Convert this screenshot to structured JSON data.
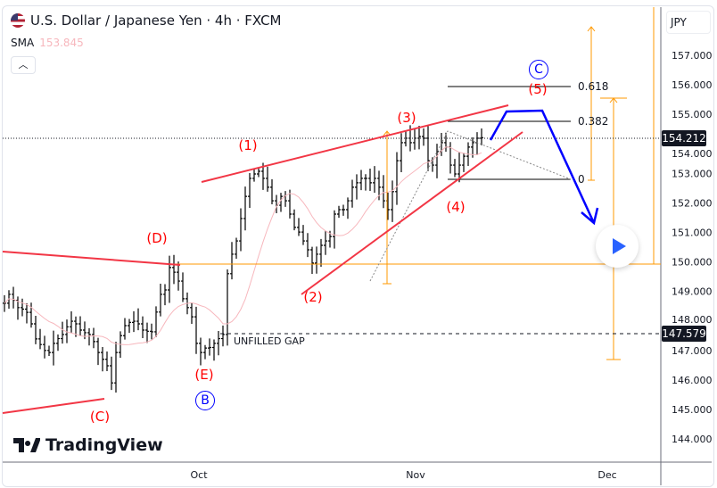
{
  "header": {
    "title": "U.S. Dollar / Japanese Yen · 4h · FXCM",
    "indicator": "SMA",
    "indicator_value": "153.845",
    "collapse_icon": "chevron-up-icon"
  },
  "currency": "JPY",
  "price_tags": {
    "last": "154.212",
    "gap": "147.579"
  },
  "annotations": {
    "waves": {
      "w1": "(1)",
      "w2": "(2)",
      "w3": "(3)",
      "w4": "(4)",
      "w5": "(5)",
      "c": "(C)",
      "d": "(D)",
      "e": "(E)"
    },
    "circled": {
      "b": "B",
      "c": "C"
    },
    "fib": {
      "f618": "0.618",
      "f382": "0.382",
      "f0": "0"
    },
    "gap_label": "UNFILLED GAP"
  },
  "logo": "TradingView",
  "colors": {
    "bars": "#000000",
    "sma": "#f7b7bd",
    "wave_lines": "#f23645",
    "projection": "#0000ff",
    "levels": "#ff9800",
    "play": "#2962ff"
  },
  "chart_data": {
    "type": "ohlc",
    "title": "U.S. Dollar / Japanese Yen · 4h · FXCM",
    "y_ticks": [
      "157.000",
      "156.000",
      "155.000",
      "154.000",
      "153.000",
      "152.000",
      "151.000",
      "150.000",
      "149.000",
      "148.000",
      "147.000",
      "146.000",
      "145.000",
      "144.000"
    ],
    "ylim": [
      143.7,
      157.9
    ],
    "x_ticks": [
      "Oct",
      "Nov",
      "Dec"
    ],
    "grid": false,
    "closes": [
      148.6,
      148.9,
      148.7,
      148.45,
      148.4,
      148.29,
      147.9,
      147.39,
      147.2,
      147.0,
      146.93,
      147.24,
      147.4,
      147.54,
      147.8,
      147.99,
      147.9,
      147.69,
      147.6,
      147.54,
      147.3,
      146.93,
      146.7,
      146.48,
      145.9,
      146.93,
      147.5,
      147.84,
      147.95,
      147.99,
      147.9,
      147.69,
      147.65,
      147.63,
      148.3,
      148.9,
      149.05,
      149.81,
      149.65,
      149.35,
      148.75,
      148.45,
      148.14,
      147.24,
      146.93,
      147.08,
      147.1,
      147.24,
      147.4,
      147.54,
      149.6,
      150.26,
      150.71,
      151.47,
      152.22,
      152.83,
      152.98,
      153.07,
      152.83,
      152.53,
      152.07,
      151.92,
      152.22,
      152.07,
      151.62,
      151.17,
      151.01,
      150.71,
      150.41,
      149.96,
      150.26,
      150.56,
      150.71,
      150.86,
      151.62,
      151.77,
      151.77,
      152.07,
      152.53,
      152.68,
      152.83,
      152.83,
      152.68,
      152.83,
      152.53,
      152.07,
      151.77,
      152.38,
      153.43,
      154.04,
      154.19,
      154.04,
      154.19,
      154.25,
      154.19,
      153.43,
      153.28,
      153.74,
      154.04,
      153.89,
      153.28,
      152.98,
      153.28,
      153.58,
      153.89,
      154.04,
      154.19,
      154.21
    ],
    "series": [
      {
        "name": "SMA",
        "last": 153.845
      }
    ]
  }
}
